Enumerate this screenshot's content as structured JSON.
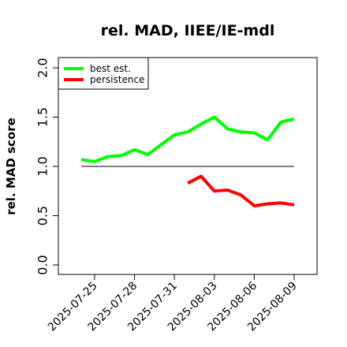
{
  "chart_data": {
    "type": "line",
    "title": "rel. MAD, IIEE/IE-mdl",
    "xlabel": "",
    "ylabel": "rel. MAD score",
    "ylim": [
      0.0,
      2.0
    ],
    "yticks": [
      "0.0",
      "0.5",
      "1.0",
      "1.5",
      "2.0"
    ],
    "xtick_labels": [
      "2025-07-25",
      "2025-07-28",
      "2025-07-31",
      "2025-08-03",
      "2025-08-06",
      "2025-08-09"
    ],
    "x_start_date": "2025-07-24",
    "reference_line": {
      "y": 1.0,
      "x_from": "2025-07-24",
      "x_to": "2025-08-09",
      "color": "#555555"
    },
    "legend": {
      "placement": "top-left"
    },
    "grid": false,
    "series": [
      {
        "name": "best est.",
        "color": "#00ff00",
        "x": [
          "2025-07-24",
          "2025-07-25",
          "2025-07-26",
          "2025-07-27",
          "2025-07-28",
          "2025-07-29",
          "2025-07-30",
          "2025-07-31",
          "2025-08-01",
          "2025-08-02",
          "2025-08-03",
          "2025-08-04",
          "2025-08-05",
          "2025-08-06",
          "2025-08-07",
          "2025-08-08",
          "2025-08-09"
        ],
        "values": [
          1.07,
          1.05,
          1.1,
          1.11,
          1.17,
          1.12,
          1.22,
          1.32,
          1.35,
          1.43,
          1.5,
          1.38,
          1.35,
          1.34,
          1.27,
          1.45,
          1.48
        ]
      },
      {
        "name": "persistence",
        "color": "#ff0000",
        "x": [
          "2025-08-01",
          "2025-08-02",
          "2025-08-03",
          "2025-08-04",
          "2025-08-05",
          "2025-08-06",
          "2025-08-07",
          "2025-08-08",
          "2025-08-09"
        ],
        "values": [
          0.83,
          0.9,
          0.75,
          0.76,
          0.71,
          0.6,
          0.62,
          0.63,
          0.61
        ]
      }
    ]
  }
}
